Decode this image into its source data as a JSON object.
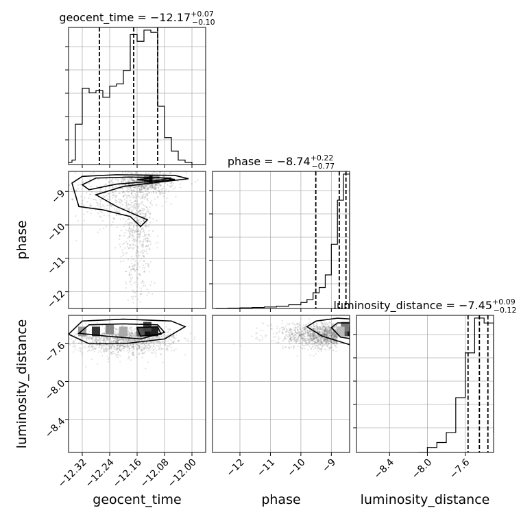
{
  "chart_data": [
    {
      "type": "histogram",
      "panel": "geocent_time-marginal",
      "title": "geocent_time = −12.17",
      "title_sup": "+0.07",
      "title_sub": "−0.10",
      "x": [
        -12.36,
        -12.35,
        -12.34,
        -12.33,
        -12.32,
        -12.31,
        -12.3,
        -12.29,
        -12.28,
        -12.27,
        -12.26,
        -12.25,
        -12.24,
        -12.23,
        -12.22,
        -12.21,
        -12.2,
        -12.19,
        -12.18,
        -12.17,
        -12.16,
        -12.15,
        -12.14,
        -12.13,
        -12.12,
        -12.11,
        -12.1,
        -12.09,
        -12.08,
        -12.07,
        -12.06,
        -12.05,
        -12.04,
        -12.03,
        -12.02,
        -12.01,
        -12.0
      ],
      "values": [
        1,
        2,
        18,
        18,
        34,
        34,
        32,
        32,
        33,
        33,
        30,
        30,
        35,
        35,
        36,
        36,
        42,
        42,
        58,
        58,
        55,
        55,
        60,
        60,
        59,
        59,
        26,
        26,
        12,
        12,
        6,
        6,
        2,
        2,
        1,
        1,
        0
      ],
      "quantile_lines": [
        -12.27,
        -12.17,
        -12.1
      ],
      "xlim": [
        -12.36,
        -11.96
      ],
      "grid": true
    },
    {
      "type": "histogram",
      "panel": "phase-marginal",
      "title": "phase = −8.74",
      "title_sup": "+0.22",
      "title_sub": "−0.77",
      "x": [
        -12.8,
        -12.4,
        -12.0,
        -11.6,
        -11.2,
        -10.8,
        -10.4,
        -10.0,
        -9.8,
        -9.6,
        -9.4,
        -9.2,
        -9.0,
        -8.8,
        -8.6,
        -8.4
      ],
      "values": [
        0.3,
        0.5,
        0.8,
        1.3,
        2,
        3,
        5,
        8,
        12,
        21,
        28,
        45,
        86,
        145,
        180,
        0
      ],
      "quantile_lines": [
        -9.51,
        -8.74,
        -8.52
      ],
      "xlim": [
        -12.9,
        -8.4
      ],
      "grid": true
    },
    {
      "type": "histogram",
      "panel": "luminosity_distance-marginal",
      "title": "luminosity_distance = −7.45",
      "title_sup": "+0.09",
      "title_sub": "−0.12",
      "x": [
        -8.1,
        -8.0,
        -7.9,
        -7.8,
        -7.7,
        -7.6,
        -7.5,
        -7.4,
        -7.3
      ],
      "values": [
        0,
        1,
        2,
        4,
        11,
        20,
        27,
        26,
        4
      ],
      "quantile_lines": [
        -7.57,
        -7.45,
        -7.36
      ],
      "xlim": [
        -8.75,
        -7.3
      ],
      "grid": true
    },
    {
      "type": "scatter-contour",
      "panel": "geocent_time-vs-phase",
      "xlim": [
        -12.36,
        -11.96
      ],
      "ylim": [
        -12.5,
        -8.4
      ],
      "density_peak": {
        "x": -12.12,
        "y": -8.65
      },
      "grid": true
    },
    {
      "type": "scatter-contour",
      "panel": "geocent_time-vs-luminosity_distance",
      "xlim": [
        -12.36,
        -11.96
      ],
      "ylim": [
        -8.75,
        -7.3
      ],
      "density_peaks": [
        {
          "x": -12.13,
          "y": -7.47
        },
        {
          "x": -12.28,
          "y": -7.47
        }
      ],
      "grid": true
    },
    {
      "type": "scatter-contour",
      "panel": "phase-vs-luminosity_distance",
      "xlim": [
        -12.9,
        -8.4
      ],
      "ylim": [
        -8.75,
        -7.3
      ],
      "density_peak": {
        "x": -8.55,
        "y": -7.47
      },
      "grid": true
    }
  ],
  "axes": {
    "geocent_time": {
      "label": "geocent_time",
      "ticks": [
        "−12.32",
        "−12.24",
        "−12.16",
        "−12.08",
        "−12.00"
      ],
      "tick_values": [
        -12.32,
        -12.24,
        -12.16,
        -12.08,
        -12.0
      ]
    },
    "phase": {
      "label": "phase",
      "ticks": [
        "−12",
        "−11",
        "−10",
        "−9"
      ],
      "tick_values": [
        -12,
        -11,
        -10,
        -9
      ]
    },
    "luminosity_distance": {
      "label": "luminosity_distance",
      "ticks": [
        "−8.4",
        "−8.0",
        "−7.6"
      ],
      "tick_values": [
        -8.4,
        -8.0,
        -7.6
      ]
    }
  },
  "colors": {
    "line": "#000000",
    "grid": "#b0b0b0",
    "scatter": "#555555"
  }
}
